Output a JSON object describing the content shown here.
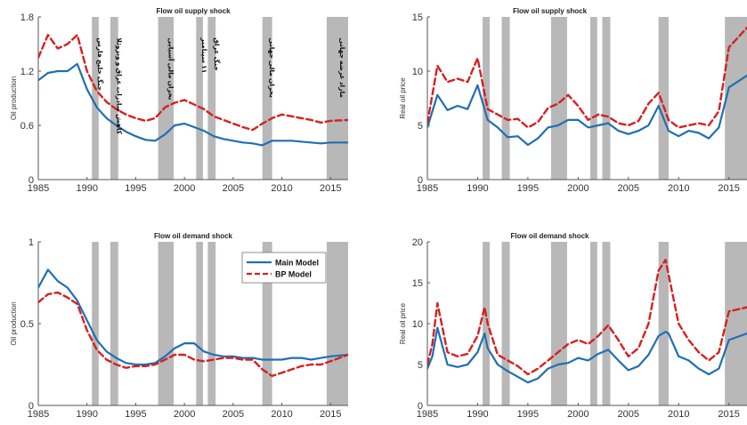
{
  "chart_data": [
    {
      "id": "p1",
      "type": "line",
      "title": "Flow oil supply shock",
      "ylabel": "Oil production",
      "xlim": [
        1985,
        2016.8
      ],
      "ylim": [
        0,
        1.8
      ],
      "xticks": [
        1985,
        1990,
        1995,
        2000,
        2005,
        2010,
        2015
      ],
      "yticks": [
        0,
        0.6,
        1.2,
        1.8
      ],
      "ytick_labels": [
        "0",
        "0.6",
        "1.2",
        "1.8"
      ],
      "annotations": [
        "جنگ خلیج فارس",
        "کاهش صادرات عراق و ونزوئلا",
        "بحران مالی آسیایی",
        "۱۱ سپتامبر",
        "جنگ عراق",
        "بحران مالی جهانی",
        "مازاد عرضه جهانی"
      ],
      "x": [
        1985,
        1986,
        1987,
        1988,
        1989,
        1990,
        1991,
        1992,
        1993,
        1994,
        1995,
        1996,
        1997,
        1998,
        1999,
        2000,
        2001,
        2002,
        2003,
        2004,
        2005,
        2006,
        2007,
        2008,
        2009,
        2010,
        2011,
        2012,
        2013,
        2014,
        2015,
        2016.8
      ],
      "series": [
        {
          "name": "Main Model",
          "color": "#1f6fb4",
          "style": "solid",
          "values": [
            1.1,
            1.18,
            1.2,
            1.2,
            1.28,
            1.0,
            0.8,
            0.68,
            0.6,
            0.53,
            0.48,
            0.44,
            0.43,
            0.5,
            0.6,
            0.62,
            0.58,
            0.54,
            0.48,
            0.45,
            0.43,
            0.41,
            0.4,
            0.38,
            0.43,
            0.43,
            0.43,
            0.42,
            0.41,
            0.4,
            0.41,
            0.41
          ]
        },
        {
          "name": "BP Model",
          "color": "#d62020",
          "style": "dashed",
          "values": [
            1.35,
            1.6,
            1.45,
            1.5,
            1.6,
            1.2,
            0.98,
            0.86,
            0.78,
            0.72,
            0.68,
            0.65,
            0.68,
            0.8,
            0.85,
            0.88,
            0.83,
            0.78,
            0.7,
            0.66,
            0.62,
            0.58,
            0.55,
            0.62,
            0.68,
            0.72,
            0.7,
            0.68,
            0.66,
            0.63,
            0.65,
            0.66
          ]
        }
      ]
    },
    {
      "id": "p2",
      "type": "line",
      "title": "Flow oil supply shock",
      "ylabel": "Real oil price",
      "xlim": [
        1985,
        2016.8
      ],
      "ylim": [
        0,
        15
      ],
      "xticks": [
        1985,
        1990,
        1995,
        2000,
        2005,
        2010,
        2015
      ],
      "yticks": [
        0,
        5,
        10,
        15
      ],
      "ytick_labels": [
        "0",
        "5",
        "10",
        "15"
      ],
      "x": [
        1985,
        1986,
        1987,
        1988,
        1989,
        1990,
        1991,
        1992,
        1993,
        1994,
        1995,
        1996,
        1997,
        1998,
        1999,
        2000,
        2001,
        2002,
        2003,
        2004,
        2005,
        2006,
        2007,
        2008,
        2009,
        2010,
        2011,
        2012,
        2013,
        2014,
        2015,
        2016.8
      ],
      "series": [
        {
          "name": "Main Model",
          "color": "#1f6fb4",
          "style": "solid",
          "values": [
            4.8,
            7.8,
            6.4,
            6.8,
            6.5,
            8.7,
            5.5,
            4.8,
            3.9,
            4.0,
            3.2,
            3.8,
            4.8,
            5.0,
            5.5,
            5.5,
            4.8,
            5.0,
            5.2,
            4.5,
            4.2,
            4.5,
            5.0,
            6.8,
            4.5,
            4.0,
            4.5,
            4.3,
            3.8,
            4.8,
            8.5,
            9.6
          ]
        },
        {
          "name": "BP Model",
          "color": "#d62020",
          "style": "dashed",
          "values": [
            5.2,
            10.5,
            9.0,
            9.3,
            9.0,
            11.2,
            6.5,
            6.0,
            5.5,
            5.6,
            4.8,
            5.3,
            6.6,
            7.0,
            7.8,
            6.8,
            5.5,
            6.0,
            5.8,
            5.2,
            5.0,
            5.4,
            7.0,
            8.0,
            5.5,
            4.8,
            5.0,
            5.2,
            5.0,
            6.3,
            12.2,
            14.0
          ]
        }
      ]
    },
    {
      "id": "p3",
      "type": "line",
      "title": "Flow oil demand shock",
      "ylabel": "Oil production",
      "xlim": [
        1985,
        2016.8
      ],
      "ylim": [
        0,
        1
      ],
      "xticks": [
        1985,
        1990,
        1995,
        2000,
        2005,
        2010,
        2015
      ],
      "yticks": [
        0,
        0.5,
        1
      ],
      "ytick_labels": [
        "0",
        "0.5",
        "1"
      ],
      "legend": {
        "placement": "top-right",
        "entries": [
          "Main Model",
          "BP Model"
        ]
      },
      "x": [
        1985,
        1986,
        1987,
        1988,
        1989,
        1990,
        1991,
        1992,
        1993,
        1994,
        1995,
        1996,
        1997,
        1998,
        1999,
        2000,
        2001,
        2002,
        2003,
        2004,
        2005,
        2006,
        2007,
        2008,
        2009,
        2010,
        2011,
        2012,
        2013,
        2014,
        2015,
        2016.8
      ],
      "series": [
        {
          "name": "Main Model",
          "color": "#1f6fb4",
          "style": "solid",
          "values": [
            0.72,
            0.83,
            0.76,
            0.72,
            0.64,
            0.52,
            0.4,
            0.33,
            0.29,
            0.26,
            0.25,
            0.25,
            0.26,
            0.3,
            0.35,
            0.38,
            0.38,
            0.33,
            0.31,
            0.3,
            0.3,
            0.29,
            0.29,
            0.28,
            0.28,
            0.28,
            0.29,
            0.29,
            0.28,
            0.29,
            0.3,
            0.31
          ]
        },
        {
          "name": "BP Model",
          "color": "#d62020",
          "style": "dashed",
          "values": [
            0.63,
            0.68,
            0.69,
            0.66,
            0.62,
            0.46,
            0.34,
            0.28,
            0.25,
            0.23,
            0.24,
            0.24,
            0.25,
            0.28,
            0.31,
            0.31,
            0.28,
            0.27,
            0.28,
            0.29,
            0.29,
            0.28,
            0.28,
            0.22,
            0.18,
            0.2,
            0.22,
            0.24,
            0.25,
            0.25,
            0.27,
            0.31
          ]
        }
      ]
    },
    {
      "id": "p4",
      "type": "line",
      "title": "Flow oil demand shock",
      "ylabel": "Real oil price",
      "xlim": [
        1985,
        2016.8
      ],
      "ylim": [
        0,
        20
      ],
      "xticks": [
        1985,
        1990,
        1995,
        2000,
        2005,
        2010,
        2015
      ],
      "yticks": [
        0,
        5,
        10,
        15,
        20
      ],
      "ytick_labels": [
        "0",
        "5",
        "10",
        "15",
        "20"
      ],
      "x": [
        1985,
        1985.5,
        1986,
        1987,
        1988,
        1989,
        1990,
        1990.7,
        1991,
        1992,
        1993,
        1994,
        1995,
        1996,
        1997,
        1998,
        1999,
        2000,
        2001,
        2002,
        2003,
        2004,
        2005,
        2006,
        2007,
        2008,
        2008.7,
        2009,
        2010,
        2011,
        2012,
        2013,
        2014,
        2015,
        2016.8
      ],
      "series": [
        {
          "name": "Main Model",
          "color": "#1f6fb4",
          "style": "solid",
          "values": [
            4.5,
            6.0,
            9.5,
            5.0,
            4.7,
            5.0,
            6.5,
            8.8,
            7.0,
            5.0,
            4.2,
            3.5,
            2.8,
            3.3,
            4.5,
            5.0,
            5.2,
            5.8,
            5.5,
            6.3,
            6.8,
            5.5,
            4.3,
            4.8,
            6.2,
            8.5,
            9.0,
            8.8,
            6.0,
            5.5,
            4.5,
            3.8,
            4.5,
            8.0,
            8.8
          ]
        },
        {
          "name": "BP Model",
          "color": "#d62020",
          "style": "dashed",
          "values": [
            5.0,
            7.5,
            12.5,
            6.5,
            6.0,
            6.3,
            8.5,
            12.0,
            10.0,
            6.2,
            5.5,
            4.8,
            3.8,
            4.5,
            5.5,
            6.5,
            7.5,
            8.0,
            7.5,
            8.5,
            9.8,
            8.0,
            6.0,
            7.0,
            10.0,
            16.5,
            17.8,
            16.0,
            10.0,
            8.0,
            6.5,
            5.5,
            6.5,
            11.5,
            12.0
          ]
        }
      ]
    }
  ],
  "shading": {
    "color": "#b8b8b8",
    "periods": [
      [
        1990.5,
        1991.2
      ],
      [
        1992.4,
        1993.2
      ],
      [
        1997.3,
        1998.9
      ],
      [
        2001.2,
        2001.9
      ],
      [
        2002.4,
        2003.2
      ],
      [
        2008.0,
        2009.0
      ],
      [
        2014.6,
        2016.8
      ]
    ]
  }
}
